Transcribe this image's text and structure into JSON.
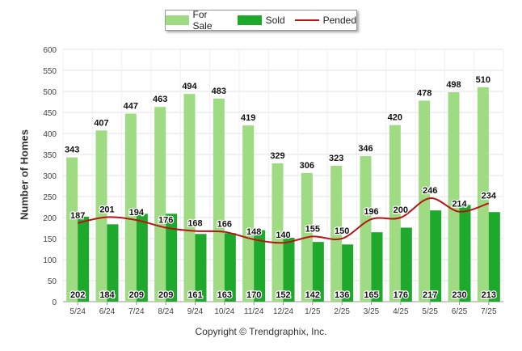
{
  "chart_data": {
    "type": "bar",
    "categories": [
      "5/24",
      "6/24",
      "7/24",
      "8/24",
      "9/24",
      "10/24",
      "11/24",
      "12/24",
      "1/25",
      "2/25",
      "3/25",
      "4/25",
      "5/25",
      "6/25",
      "7/25"
    ],
    "series": [
      {
        "name": "For Sale",
        "type": "bar",
        "color": "#9edb82",
        "values": [
          343,
          407,
          447,
          463,
          494,
          483,
          419,
          329,
          306,
          323,
          346,
          420,
          478,
          498,
          510
        ]
      },
      {
        "name": "Sold",
        "type": "bar",
        "color": "#1ea82c",
        "values": [
          202,
          184,
          209,
          209,
          161,
          163,
          170,
          152,
          142,
          136,
          165,
          176,
          217,
          230,
          213
        ]
      },
      {
        "name": "Pended",
        "type": "line",
        "color": "#b81414",
        "values": [
          187,
          201,
          194,
          176,
          168,
          166,
          148,
          140,
          155,
          150,
          196,
          200,
          246,
          214,
          234
        ]
      }
    ],
    "ylabel": "Number of Homes",
    "xlabel": "",
    "ylim": [
      0,
      600
    ],
    "yticks": [
      0,
      50,
      100,
      150,
      200,
      250,
      300,
      350,
      400,
      450,
      500,
      550,
      600
    ],
    "grid": true,
    "legend_position": "top-center"
  },
  "copyright": "Copyright © Trendgraphix, Inc."
}
